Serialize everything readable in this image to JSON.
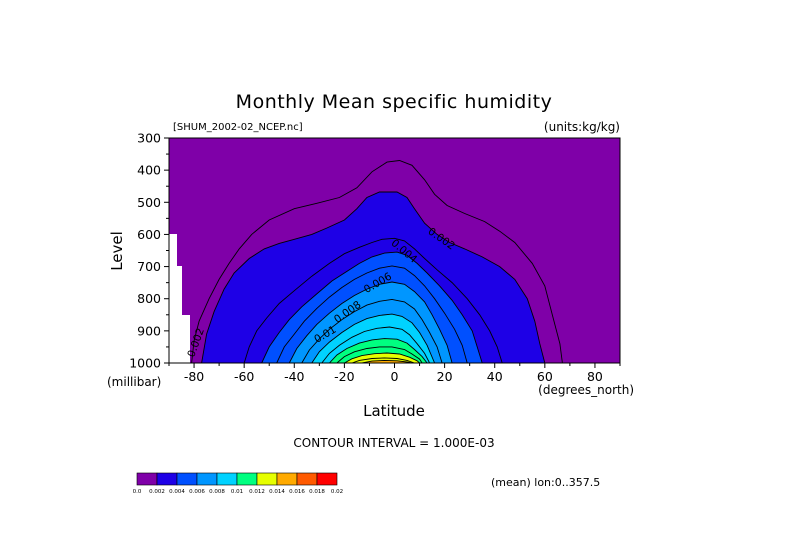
{
  "chart_data": {
    "type": "contour",
    "title": "Monthly Mean specific humidity",
    "file_label": "[SHUM_2002-02_NCEP.nc]",
    "units_label": "(units:kg/kg)",
    "xlabel": "Latitude",
    "x_units": "(degrees_north)",
    "ylabel": "Level",
    "y_units": "(millibar)",
    "xlim": [
      -90,
      90
    ],
    "ylim": [
      1000,
      300
    ],
    "x_ticks": [
      -80,
      -60,
      -40,
      -20,
      0,
      20,
      40,
      60,
      80
    ],
    "y_ticks": [
      300,
      400,
      500,
      600,
      700,
      800,
      900,
      1000
    ],
    "contour_interval_text": "CONTOUR INTERVAL = 1.000E-03",
    "averaging_text": "(mean) lon:0..357.5",
    "background_color": "#7f00a8",
    "contour_labels": [
      "0.002",
      "0.002",
      "0.004",
      "0.006",
      "0.008",
      "0.01"
    ],
    "colorbar": {
      "levels": [
        "0.0",
        "0.002",
        "0.004",
        "0.006",
        "0.008",
        "0.01",
        "0.012",
        "0.014",
        "0.016",
        "0.018",
        "0.02"
      ],
      "colors": [
        "#7f00a8",
        "#1e00e6",
        "#0050ff",
        "#0096ff",
        "#00d2ff",
        "#00ff80",
        "#e6ff00",
        "#ffaa00",
        "#ff5a00",
        "#ff0000"
      ]
    },
    "layers": [
      {
        "level": 0.001,
        "fill": false,
        "points": [
          [
            -81,
            1000
          ],
          [
            -80,
            930
          ],
          [
            -78,
            870
          ],
          [
            -74,
            800
          ],
          [
            -70,
            740
          ],
          [
            -66,
            690
          ],
          [
            -62,
            645
          ],
          [
            -57,
            600
          ],
          [
            -50,
            555
          ],
          [
            -40,
            520
          ],
          [
            -31,
            503
          ],
          [
            -22,
            485
          ],
          [
            -15,
            455
          ],
          [
            -9,
            405
          ],
          [
            -3,
            375
          ],
          [
            2,
            370
          ],
          [
            7,
            385
          ],
          [
            12,
            430
          ],
          [
            16,
            475
          ],
          [
            21,
            510
          ],
          [
            28,
            535
          ],
          [
            36,
            560
          ],
          [
            42,
            590
          ],
          [
            48,
            625
          ],
          [
            55,
            690
          ],
          [
            60,
            760
          ],
          [
            63,
            850
          ],
          [
            66,
            940
          ],
          [
            67,
            1000
          ]
        ]
      },
      {
        "level": 0.002,
        "fill": true,
        "points": [
          [
            -77,
            1000
          ],
          [
            -75,
            910
          ],
          [
            -72,
            840
          ],
          [
            -68,
            770
          ],
          [
            -64,
            720
          ],
          [
            -58,
            675
          ],
          [
            -52,
            645
          ],
          [
            -46,
            628
          ],
          [
            -40,
            615
          ],
          [
            -33,
            600
          ],
          [
            -27,
            580
          ],
          [
            -20,
            555
          ],
          [
            -15,
            520
          ],
          [
            -11,
            485
          ],
          [
            -6,
            468
          ],
          [
            1,
            468
          ],
          [
            5,
            485
          ],
          [
            8,
            520
          ],
          [
            12,
            565
          ],
          [
            17,
            600
          ],
          [
            22,
            625
          ],
          [
            28,
            645
          ],
          [
            35,
            670
          ],
          [
            42,
            700
          ],
          [
            48,
            740
          ],
          [
            53,
            800
          ],
          [
            56,
            870
          ],
          [
            58,
            940
          ],
          [
            60,
            1000
          ]
        ]
      },
      {
        "level": 0.003,
        "fill": true,
        "points": [
          [
            -60,
            1000
          ],
          [
            -58,
            950
          ],
          [
            -55,
            900
          ],
          [
            -51,
            860
          ],
          [
            -46,
            815
          ],
          [
            -40,
            775
          ],
          [
            -33,
            730
          ],
          [
            -26,
            690
          ],
          [
            -20,
            660
          ],
          [
            -14,
            640
          ],
          [
            -9,
            625
          ],
          [
            -5,
            615
          ],
          [
            0,
            612
          ],
          [
            4,
            620
          ],
          [
            8,
            645
          ],
          [
            12,
            675
          ],
          [
            17,
            710
          ],
          [
            23,
            750
          ],
          [
            29,
            800
          ],
          [
            34,
            850
          ],
          [
            38,
            900
          ],
          [
            41,
            950
          ],
          [
            43,
            1000
          ]
        ]
      },
      {
        "level": 0.004,
        "fill": true,
        "points": [
          [
            -53,
            1000
          ],
          [
            -50,
            950
          ],
          [
            -46,
            905
          ],
          [
            -42,
            865
          ],
          [
            -37,
            825
          ],
          [
            -31,
            785
          ],
          [
            -25,
            745
          ],
          [
            -19,
            715
          ],
          [
            -14,
            690
          ],
          [
            -9,
            670
          ],
          [
            -4,
            658
          ],
          [
            1,
            655
          ],
          [
            5,
            665
          ],
          [
            9,
            690
          ],
          [
            13,
            720
          ],
          [
            18,
            760
          ],
          [
            23,
            805
          ],
          [
            27,
            850
          ],
          [
            31,
            900
          ],
          [
            33,
            950
          ],
          [
            35,
            1000
          ]
        ]
      },
      {
        "level": 0.005,
        "fill": true,
        "points": [
          [
            -47,
            1000
          ],
          [
            -44,
            950
          ],
          [
            -40,
            910
          ],
          [
            -36,
            870
          ],
          [
            -31,
            830
          ],
          [
            -26,
            795
          ],
          [
            -21,
            765
          ],
          [
            -16,
            740
          ],
          [
            -11,
            720
          ],
          [
            -6,
            705
          ],
          [
            -1,
            698
          ],
          [
            4,
            705
          ],
          [
            8,
            728
          ],
          [
            12,
            760
          ],
          [
            16,
            800
          ],
          [
            20,
            845
          ],
          [
            24,
            895
          ],
          [
            27,
            945
          ],
          [
            29,
            1000
          ]
        ]
      },
      {
        "level": 0.006,
        "fill": true,
        "points": [
          [
            -42,
            1000
          ],
          [
            -39,
            955
          ],
          [
            -35,
            915
          ],
          [
            -31,
            880
          ],
          [
            -26,
            845
          ],
          [
            -21,
            815
          ],
          [
            -16,
            790
          ],
          [
            -11,
            770
          ],
          [
            -6,
            755
          ],
          [
            -1,
            748
          ],
          [
            4,
            755
          ],
          [
            8,
            778
          ],
          [
            12,
            810
          ],
          [
            15,
            850
          ],
          [
            18,
            895
          ],
          [
            21,
            945
          ],
          [
            23,
            1000
          ]
        ]
      },
      {
        "level": 0.007,
        "fill": true,
        "points": [
          [
            -37,
            1000
          ],
          [
            -34,
            960
          ],
          [
            -30,
            925
          ],
          [
            -26,
            895
          ],
          [
            -21,
            865
          ],
          [
            -16,
            840
          ],
          [
            -11,
            820
          ],
          [
            -6,
            808
          ],
          [
            -1,
            802
          ],
          [
            4,
            810
          ],
          [
            8,
            832
          ],
          [
            11,
            865
          ],
          [
            14,
            905
          ],
          [
            17,
            950
          ],
          [
            19,
            1000
          ]
        ]
      },
      {
        "level": 0.008,
        "fill": true,
        "points": [
          [
            -33,
            1000
          ],
          [
            -30,
            965
          ],
          [
            -26,
            935
          ],
          [
            -21,
            905
          ],
          [
            -16,
            880
          ],
          [
            -11,
            862
          ],
          [
            -6,
            852
          ],
          [
            -1,
            848
          ],
          [
            3,
            855
          ],
          [
            7,
            875
          ],
          [
            10,
            905
          ],
          [
            13,
            945
          ],
          [
            16,
            1000
          ]
        ]
      },
      {
        "level": 0.009,
        "fill": true,
        "points": [
          [
            -29,
            1000
          ],
          [
            -26,
            970
          ],
          [
            -22,
            945
          ],
          [
            -17,
            920
          ],
          [
            -12,
            902
          ],
          [
            -7,
            892
          ],
          [
            -2,
            888
          ],
          [
            3,
            895
          ],
          [
            6,
            912
          ],
          [
            9,
            940
          ],
          [
            12,
            970
          ],
          [
            14,
            1000
          ]
        ]
      },
      {
        "level": 0.01,
        "fill": true,
        "points": [
          [
            -26,
            1000
          ],
          [
            -23,
            975
          ],
          [
            -19,
            955
          ],
          [
            -14,
            938
          ],
          [
            -9,
            928
          ],
          [
            -4,
            924
          ],
          [
            1,
            926
          ],
          [
            5,
            938
          ],
          [
            8,
            958
          ],
          [
            11,
            980
          ],
          [
            13,
            1000
          ]
        ]
      },
      {
        "level": 0.011,
        "fill": true,
        "points": [
          [
            -23,
            1000
          ],
          [
            -20,
            980
          ],
          [
            -16,
            965
          ],
          [
            -11,
            955
          ],
          [
            -6,
            950
          ],
          [
            -1,
            950
          ],
          [
            4,
            958
          ],
          [
            7,
            972
          ],
          [
            10,
            988
          ],
          [
            11,
            1000
          ]
        ]
      },
      {
        "level": 0.012,
        "fill": true,
        "points": [
          [
            -20,
            1000
          ],
          [
            -17,
            987
          ],
          [
            -13,
            977
          ],
          [
            -8,
            971
          ],
          [
            -3,
            969
          ],
          [
            2,
            972
          ],
          [
            6,
            982
          ],
          [
            9,
            993
          ],
          [
            10,
            1000
          ]
        ]
      },
      {
        "level": 0.013,
        "fill": true,
        "points": [
          [
            -17,
            1000
          ],
          [
            -14,
            992
          ],
          [
            -9,
            986
          ],
          [
            -4,
            984
          ],
          [
            1,
            986
          ],
          [
            5,
            992
          ],
          [
            8,
            1000
          ]
        ]
      },
      {
        "level": 0.014,
        "fill": true,
        "points": [
          [
            -13,
            1000
          ],
          [
            -9,
            994
          ],
          [
            -4,
            992
          ],
          [
            1,
            993
          ],
          [
            5,
            997
          ],
          [
            7,
            1000
          ]
        ]
      }
    ]
  }
}
